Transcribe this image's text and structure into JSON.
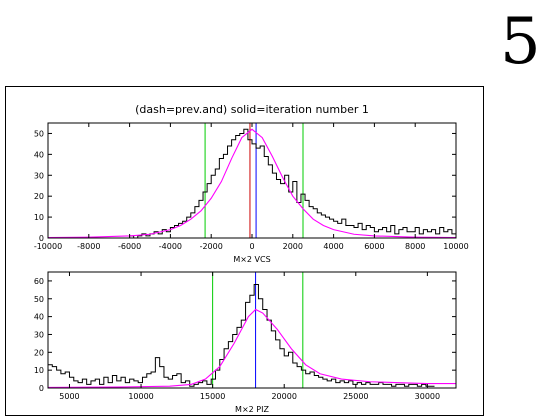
{
  "page_number": "5",
  "colors": {
    "histogram": "#000000",
    "fit": "#ff00ff",
    "limits": "#00cc00",
    "center_marker": "#0000ff",
    "prev_marker": "#cc0000"
  },
  "chart_data": [
    {
      "type": "line",
      "title": "(dash=prev.and) solid=iteration number  1",
      "xlabel": "M×2 VCS",
      "ylabel": "",
      "xlim": [
        -10000,
        10000
      ],
      "ylim": [
        0,
        55
      ],
      "xticks": [
        "-10000",
        "-8000",
        "-6000",
        "-4000",
        "-2000",
        "0",
        "2000",
        "4000",
        "6000",
        "8000",
        "10000"
      ],
      "xtick_values": [
        -10000,
        -8000,
        -6000,
        -4000,
        -2000,
        0,
        2000,
        4000,
        6000,
        8000,
        10000
      ],
      "yticks": [
        "0",
        "10",
        "20",
        "30",
        "40",
        "50"
      ],
      "ytick_values": [
        0,
        10,
        20,
        30,
        40,
        50
      ],
      "series": [
        {
          "role": "histogram",
          "style": "step",
          "x": [
            -10000,
            -9800,
            -9600,
            -9400,
            -9200,
            -9000,
            -8800,
            -8600,
            -8400,
            -8200,
            -8000,
            -7800,
            -7600,
            -7400,
            -7200,
            -7000,
            -6800,
            -6600,
            -6400,
            -6200,
            -6000,
            -5800,
            -5600,
            -5400,
            -5200,
            -5000,
            -4800,
            -4600,
            -4400,
            -4200,
            -4000,
            -3800,
            -3600,
            -3400,
            -3200,
            -3000,
            -2800,
            -2600,
            -2400,
            -2200,
            -2000,
            -1800,
            -1600,
            -1400,
            -1200,
            -1000,
            -800,
            -600,
            -400,
            -200,
            0,
            200,
            400,
            600,
            800,
            1000,
            1200,
            1400,
            1600,
            1800,
            2000,
            2200,
            2400,
            2600,
            2800,
            3000,
            3200,
            3400,
            3600,
            3800,
            4000,
            4200,
            4400,
            4600,
            4800,
            5000,
            5200,
            5400,
            5600,
            5800,
            6000,
            6200,
            6400,
            6600,
            6800,
            7000,
            7200,
            7400,
            7600,
            7800,
            8000,
            8200,
            8400,
            8600,
            8800,
            9000,
            9200,
            9400,
            9600,
            9800
          ],
          "values": [
            0,
            0,
            0,
            0,
            0,
            0,
            0,
            0,
            0,
            0,
            0,
            0,
            0,
            0,
            0,
            0,
            0,
            0,
            0,
            0,
            1,
            0,
            1,
            2,
            1,
            2,
            3,
            2,
            4,
            3,
            5,
            6,
            7,
            8,
            10,
            12,
            15,
            18,
            22,
            26,
            30,
            33,
            38,
            40,
            44,
            47,
            49,
            50,
            52,
            47,
            45,
            43,
            44,
            39,
            35,
            31,
            28,
            26,
            30,
            22,
            27,
            17,
            21,
            18,
            15,
            14,
            12,
            11,
            10,
            9,
            8,
            7,
            9,
            6,
            6,
            5,
            7,
            4,
            6,
            5,
            3,
            4,
            5,
            3,
            6,
            2,
            4,
            5,
            3,
            3,
            5,
            2,
            4,
            3,
            4,
            2,
            5,
            3,
            4,
            2
          ]
        },
        {
          "role": "fit",
          "style": "curve",
          "x": [
            -10000,
            -8000,
            -6000,
            -5000,
            -4000,
            -3500,
            -3000,
            -2500,
            -2000,
            -1500,
            -1000,
            -500,
            0,
            500,
            1000,
            1500,
            2000,
            2500,
            3000,
            3500,
            4000,
            5000,
            6000,
            8000,
            10000
          ],
          "values": [
            0.2,
            0.4,
            1,
            1.8,
            4,
            6,
            9,
            13,
            19,
            27,
            38,
            48,
            52,
            48,
            39,
            29,
            20,
            14,
            9,
            6,
            4,
            1.8,
            1,
            0.4,
            0.2
          ]
        }
      ],
      "vertical_lines": [
        {
          "role": "limits",
          "x": -2300
        },
        {
          "role": "limits",
          "x": 2500
        },
        {
          "role": "center_marker",
          "x": 200
        },
        {
          "role": "prev_marker",
          "x": -100
        }
      ]
    },
    {
      "type": "line",
      "title": "",
      "xlabel": "M×2 PIZ",
      "ylabel": "",
      "xlim": [
        3500,
        32000
      ],
      "ylim": [
        0,
        65
      ],
      "xticks": [
        "5000",
        "10000",
        "15000",
        "20000",
        "25000",
        "30000"
      ],
      "xtick_values": [
        5000,
        10000,
        15000,
        20000,
        25000,
        30000
      ],
      "yticks": [
        "0",
        "10",
        "20",
        "30",
        "40",
        "50",
        "60"
      ],
      "ytick_values": [
        0,
        10,
        20,
        30,
        40,
        50,
        60
      ],
      "series": [
        {
          "role": "histogram",
          "style": "step",
          "x": [
            3500,
            3800,
            4100,
            4400,
            4700,
            5000,
            5300,
            5600,
            5900,
            6200,
            6500,
            6800,
            7100,
            7400,
            7700,
            8000,
            8300,
            8600,
            8900,
            9200,
            9500,
            9800,
            10100,
            10400,
            10700,
            11000,
            11300,
            11600,
            11900,
            12200,
            12500,
            12800,
            13100,
            13400,
            13700,
            14000,
            14300,
            14600,
            14900,
            15200,
            15500,
            15800,
            16100,
            16400,
            16700,
            17000,
            17300,
            17600,
            17900,
            18200,
            18500,
            18800,
            19100,
            19400,
            19700,
            20000,
            20300,
            20600,
            20900,
            21200,
            21500,
            21800,
            22100,
            22400,
            22700,
            23000,
            23300,
            23600,
            23900,
            24200,
            24500,
            24800,
            25100,
            25400,
            25700,
            26000,
            26300,
            26600,
            26900,
            27200,
            27500,
            27800,
            28100,
            28400,
            28700,
            29000,
            29300,
            29600,
            29900,
            30200
          ],
          "values": [
            13,
            12,
            10,
            8,
            9,
            6,
            4,
            3,
            5,
            2,
            4,
            5,
            2,
            6,
            3,
            7,
            4,
            6,
            3,
            5,
            4,
            3,
            6,
            8,
            9,
            17,
            12,
            6,
            5,
            7,
            8,
            3,
            4,
            1,
            2,
            3,
            4,
            2,
            5,
            10,
            16,
            22,
            26,
            30,
            34,
            38,
            48,
            52,
            58,
            50,
            44,
            38,
            32,
            27,
            22,
            18,
            20,
            14,
            12,
            10,
            8,
            9,
            7,
            6,
            5,
            4,
            5,
            3,
            4,
            3,
            4,
            2,
            3,
            2,
            3,
            2,
            2,
            3,
            2,
            2,
            1,
            2,
            2,
            1,
            2,
            2,
            1,
            2,
            1,
            1
          ]
        },
        {
          "role": "fit",
          "style": "curve",
          "x": [
            3500,
            8000,
            12000,
            13500,
            14500,
            15500,
            16500,
            17500,
            18000,
            18500,
            19500,
            20500,
            21500,
            22500,
            24000,
            26000,
            28000,
            30000,
            32000
          ],
          "values": [
            0.3,
            0.5,
            1,
            2,
            5,
            12,
            25,
            40,
            44,
            42,
            33,
            22,
            13,
            8,
            5,
            3.5,
            3,
            2.5,
            2.5
          ]
        }
      ],
      "vertical_lines": [
        {
          "role": "limits",
          "x": 15000
        },
        {
          "role": "limits",
          "x": 21300
        },
        {
          "role": "center_marker",
          "x": 18000
        }
      ]
    }
  ]
}
